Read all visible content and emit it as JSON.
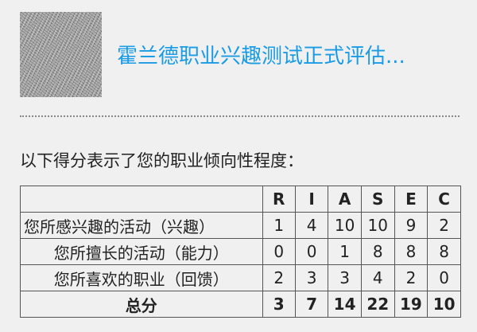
{
  "header": {
    "title": "霍兰德职业兴趣测试正式评估...",
    "title_color": "#1a9be6",
    "thumbnail_icon": "noise-image"
  },
  "intro": "以下得分表示了您的职业倾向性程度：",
  "table": {
    "columns": [
      "R",
      "I",
      "A",
      "S",
      "E",
      "C"
    ],
    "rows": [
      {
        "label": "您所感兴趣的活动（兴趣）",
        "values": [
          "1",
          "4",
          "10",
          "10",
          "9",
          "2"
        ]
      },
      {
        "label": "您所擅长的活动（能力）",
        "values": [
          "0",
          "0",
          "1",
          "8",
          "8",
          "8"
        ]
      },
      {
        "label": "您所喜欢的职业（回馈）",
        "values": [
          "2",
          "3",
          "3",
          "4",
          "2",
          "0"
        ]
      },
      {
        "label": "总分",
        "values": [
          "3",
          "7",
          "14",
          "22",
          "19",
          "10"
        ]
      }
    ]
  }
}
